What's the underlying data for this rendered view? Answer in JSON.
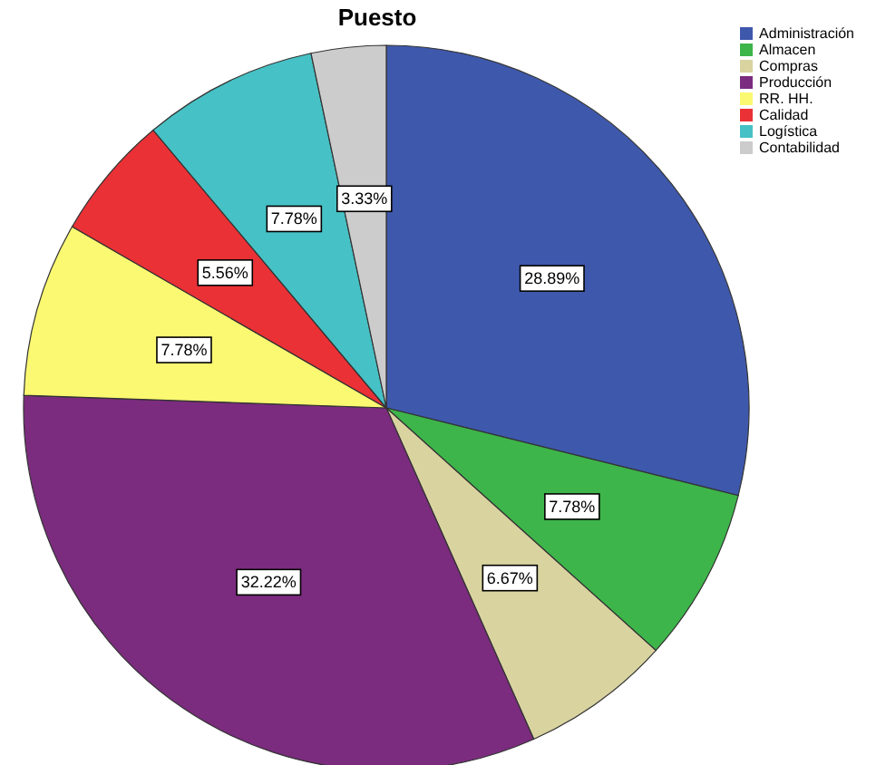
{
  "chart_data": {
    "type": "pie",
    "title": "Puesto",
    "categories": [
      "Administración",
      "Almacen",
      "Compras",
      "Producción",
      "RR. HH.",
      "Calidad",
      "Logística",
      "Contabilidad"
    ],
    "values": [
      28.89,
      7.78,
      6.67,
      32.22,
      7.78,
      5.56,
      7.78,
      3.33
    ],
    "value_labels": [
      "28.89%",
      "7.78%",
      "6.67%",
      "32.22%",
      "7.78%",
      "5.56%",
      "7.78%",
      "3.33%"
    ],
    "colors": [
      "#3e58ac",
      "#3db54a",
      "#d9d3a0",
      "#7b2c7e",
      "#fbf871",
      "#ea3136",
      "#46c1c5",
      "#cccccc"
    ],
    "legend": "top right"
  }
}
